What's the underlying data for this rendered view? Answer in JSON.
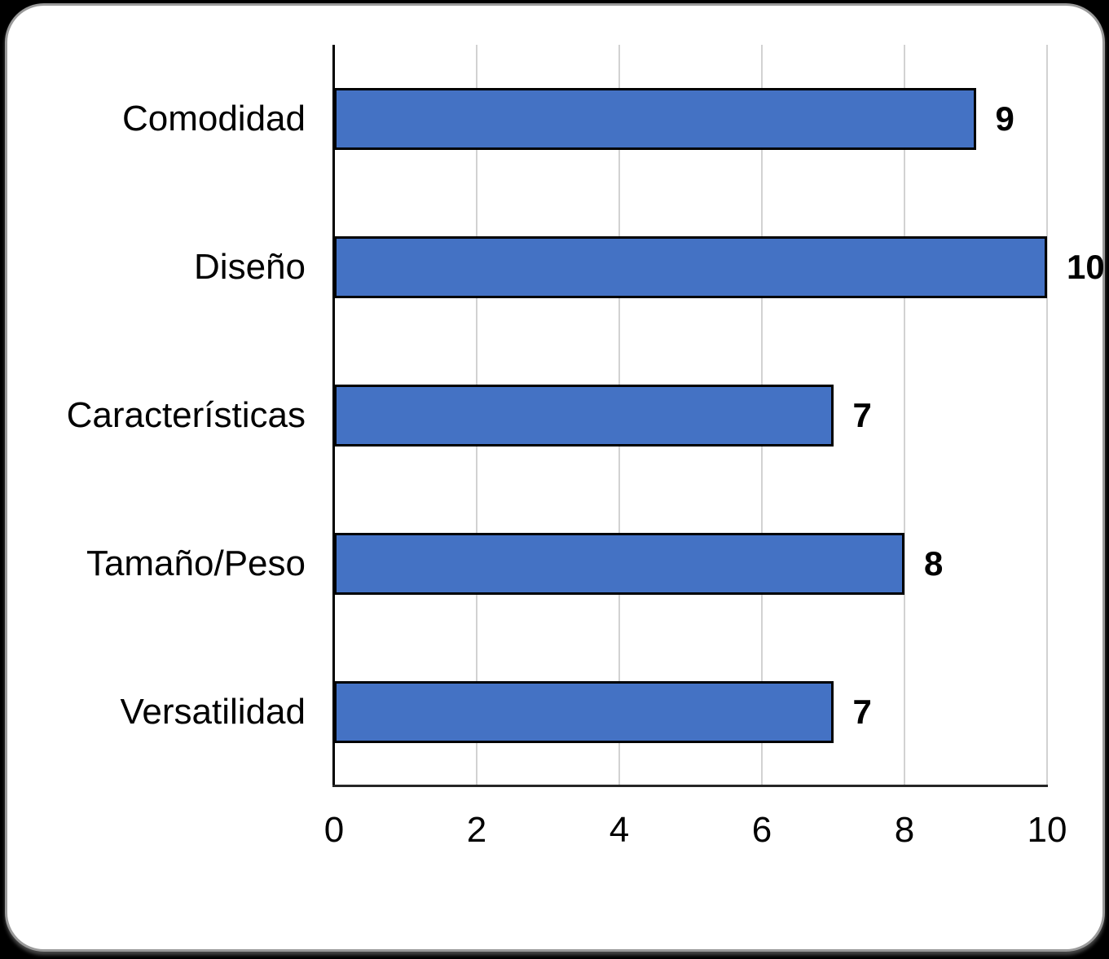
{
  "chart_data": {
    "type": "bar",
    "orientation": "horizontal",
    "title": "",
    "categories": [
      "Comodidad",
      "Diseño",
      "Características",
      "Tamaño/Peso",
      "Versatilidad"
    ],
    "values": [
      9,
      10,
      7,
      8,
      7
    ],
    "xlabel": "",
    "ylabel": "",
    "xlim": [
      0,
      10
    ],
    "x_ticks": [
      0,
      2,
      4,
      6,
      8,
      10
    ],
    "grid": true,
    "legend": false,
    "data_labels_shown": true,
    "colors": {
      "bar_fill": "#4472C4",
      "bar_border": "#000000",
      "gridline": "#D2D2D2",
      "y_axis_line": "#000000",
      "x_axis_line": "#262626",
      "text": "#000000",
      "card_background": "#FFFFFF",
      "card_border": "#9A9A9A",
      "page_background": "#000000"
    }
  }
}
